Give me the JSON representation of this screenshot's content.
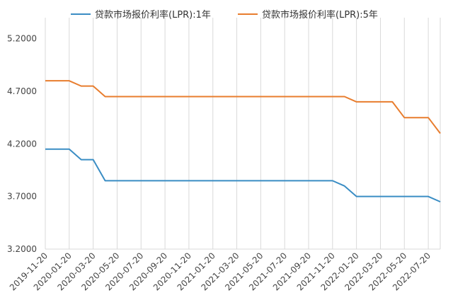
{
  "chart_data": {
    "type": "line",
    "title": "",
    "xlabel": "",
    "ylabel": "",
    "ylim": [
      3.2,
      5.4
    ],
    "yticks": [
      "3.2000",
      "3.7000",
      "4.2000",
      "4.7000",
      "5.2000"
    ],
    "grid": {
      "vertical": true,
      "horizontal": false
    },
    "legend": "top",
    "x": [
      "2019-11-20",
      "2019-12-20",
      "2020-01-20",
      "2020-02-20",
      "2020-03-20",
      "2020-04-20",
      "2020-05-20",
      "2020-06-20",
      "2020-07-20",
      "2020-08-20",
      "2020-09-20",
      "2020-10-20",
      "2020-11-20",
      "2020-12-20",
      "2021-01-20",
      "2021-02-20",
      "2021-03-20",
      "2021-04-20",
      "2021-05-20",
      "2021-06-20",
      "2021-07-20",
      "2021-08-20",
      "2021-09-20",
      "2021-10-20",
      "2021-11-20",
      "2021-12-20",
      "2022-01-20",
      "2022-02-20",
      "2022-03-20",
      "2022-04-20",
      "2022-05-20",
      "2022-06-20",
      "2022-07-20",
      "2022-08-22"
    ],
    "xtick_labels": [
      "2019-11-20",
      "2020-01-20",
      "2020-03-20",
      "2020-05-20",
      "2020-07-20",
      "2020-09-20",
      "2020-11-20",
      "2021-01-20",
      "2021-03-20",
      "2021-05-20",
      "2021-07-20",
      "2021-09-20",
      "2021-11-20",
      "2022-01-20",
      "2022-03-20",
      "2022-05-20",
      "2022-07-20"
    ],
    "series": [
      {
        "name": "贷款市场报价利率(LPR):1年",
        "color": "#3a8dc4",
        "values": [
          4.15,
          4.15,
          4.15,
          4.05,
          4.05,
          3.85,
          3.85,
          3.85,
          3.85,
          3.85,
          3.85,
          3.85,
          3.85,
          3.85,
          3.85,
          3.85,
          3.85,
          3.85,
          3.85,
          3.85,
          3.85,
          3.85,
          3.85,
          3.85,
          3.85,
          3.8,
          3.7,
          3.7,
          3.7,
          3.7,
          3.7,
          3.7,
          3.7,
          3.65
        ]
      },
      {
        "name": "贷款市场报价利率(LPR):5年",
        "color": "#e87d2e",
        "values": [
          4.8,
          4.8,
          4.8,
          4.75,
          4.75,
          4.65,
          4.65,
          4.65,
          4.65,
          4.65,
          4.65,
          4.65,
          4.65,
          4.65,
          4.65,
          4.65,
          4.65,
          4.65,
          4.65,
          4.65,
          4.65,
          4.65,
          4.65,
          4.65,
          4.65,
          4.65,
          4.6,
          4.6,
          4.6,
          4.6,
          4.45,
          4.45,
          4.45,
          4.3
        ]
      }
    ]
  }
}
